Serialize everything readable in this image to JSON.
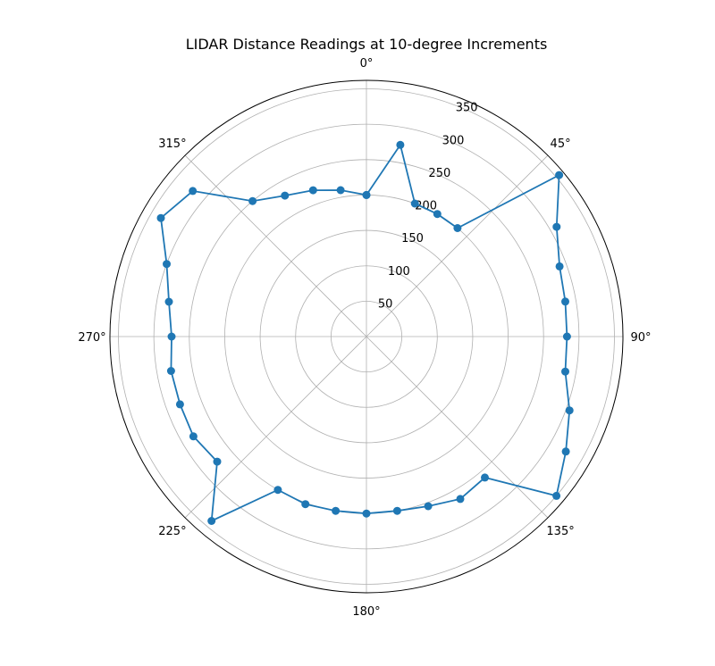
{
  "chart_data": {
    "type": "line",
    "projection": "polar",
    "title": "LIDAR Distance Readings at 10-degree Increments",
    "theta_direction": "clockwise",
    "theta_zero": "top",
    "theta_tick_labels": [
      "0°",
      "45°",
      "90°",
      "135°",
      "180°",
      "225°",
      "270°",
      "315°"
    ],
    "r_tick_labels": [
      "50",
      "100",
      "150",
      "200",
      "250",
      "300",
      "350"
    ],
    "rlim": [
      0,
      362
    ],
    "grid": true,
    "legend": "none",
    "color": "#1f77b4",
    "series": [
      {
        "angles_deg": [
          0,
          10,
          20,
          30,
          40,
          50,
          60,
          70,
          80,
          90,
          100,
          110,
          120,
          130,
          140,
          150,
          160,
          170,
          180,
          190,
          200,
          210,
          220,
          230,
          240,
          250,
          260,
          270,
          280,
          290,
          300,
          310,
          320,
          330,
          340,
          350,
          360
        ],
        "r": [
          200,
          275,
          200,
          200,
          200,
          355,
          310,
          290,
          285,
          283,
          285,
          305,
          325,
          350,
          260,
          265,
          255,
          250,
          250,
          250,
          252,
          250,
          340,
          275,
          282,
          280,
          280,
          275,
          283,
          300,
          335,
          320,
          250,
          230,
          220,
          210,
          200
        ]
      }
    ]
  }
}
